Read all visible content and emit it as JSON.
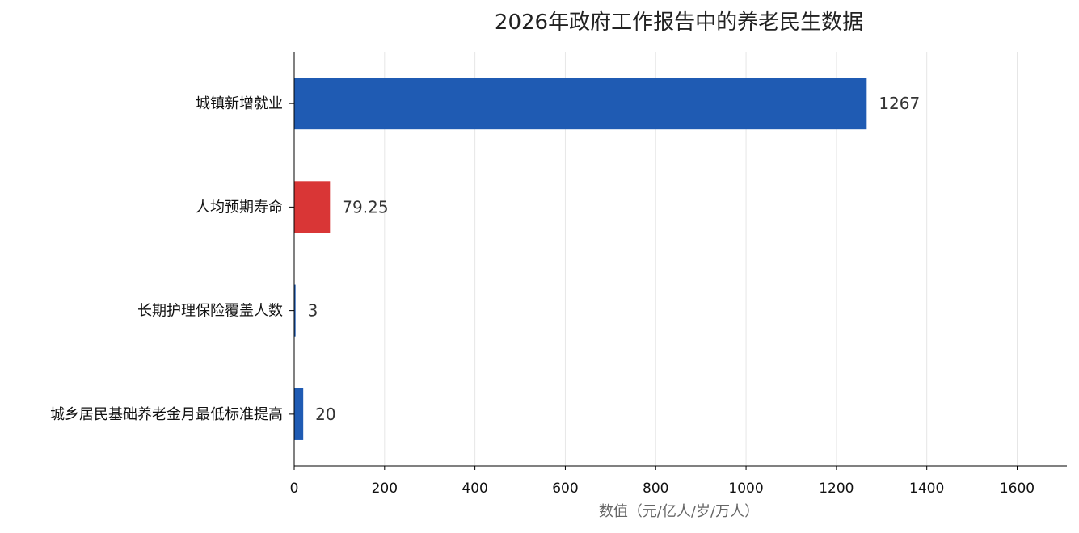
{
  "chart_data": {
    "type": "bar",
    "orientation": "horizontal",
    "title": "2026年政府工作报告中的养老民生数据",
    "xlabel": "数值（元/亿人/岁/万人）",
    "ylabel": "",
    "categories": [
      "城镇新增就业",
      "人均预期寿命",
      "长期护理保险覆盖人数",
      "城乡居民基础养老金月最低标准提高"
    ],
    "values": [
      1267,
      79.25,
      3,
      20
    ],
    "value_labels": [
      "1267",
      "79.25",
      "3",
      "20"
    ],
    "colors": [
      "#1f5bb3",
      "#d93636",
      "#1f5bb3",
      "#1f5bb3"
    ],
    "xlim": [
      0,
      1710
    ],
    "xticks": [
      0,
      200,
      400,
      600,
      800,
      1000,
      1200,
      1400,
      1600
    ],
    "grid": "vertical"
  }
}
